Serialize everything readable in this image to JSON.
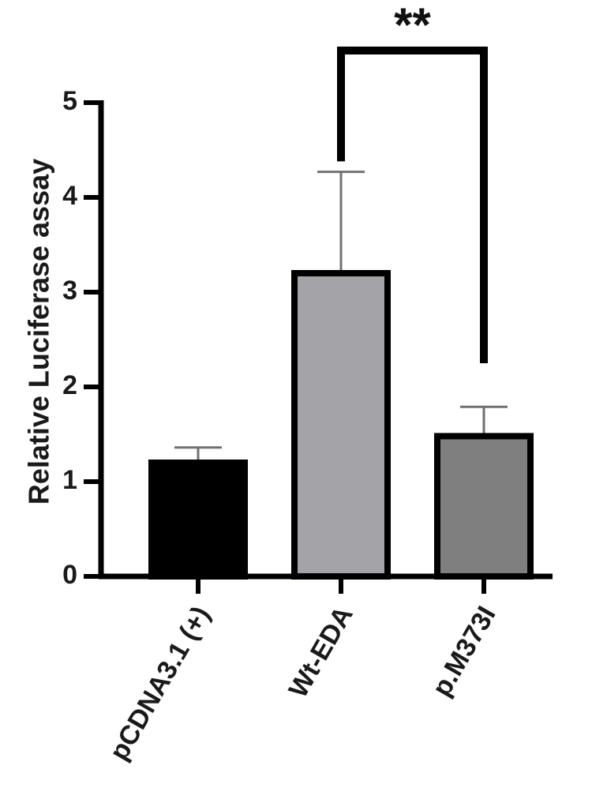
{
  "chart_data": {
    "type": "bar",
    "title": "",
    "xlabel": "",
    "ylabel": "Relative Luciferase assay",
    "ylim": [
      0,
      5
    ],
    "yticks": [
      0,
      1,
      2,
      3,
      4,
      5
    ],
    "ytick_labels": [
      "0",
      "1",
      "2",
      "3",
      "4",
      "5"
    ],
    "categories": [
      "pCDNA3.1 (+)",
      "Wt-EDA",
      "p.M373I"
    ],
    "values": [
      1.2,
      3.2,
      1.48
    ],
    "errors": [
      0.16,
      1.07,
      0.31
    ],
    "bar_colors": [
      "#000000",
      "#a3a3a8",
      "#7f7f7f"
    ],
    "edge_color": "#000000",
    "error_color": "#707070",
    "grid": false,
    "significance": {
      "pair": [
        "Wt-EDA",
        "p.M373I"
      ],
      "label": "**",
      "bracket_y": 5.55,
      "left_end": 4.38,
      "right_end": 2.25
    }
  }
}
